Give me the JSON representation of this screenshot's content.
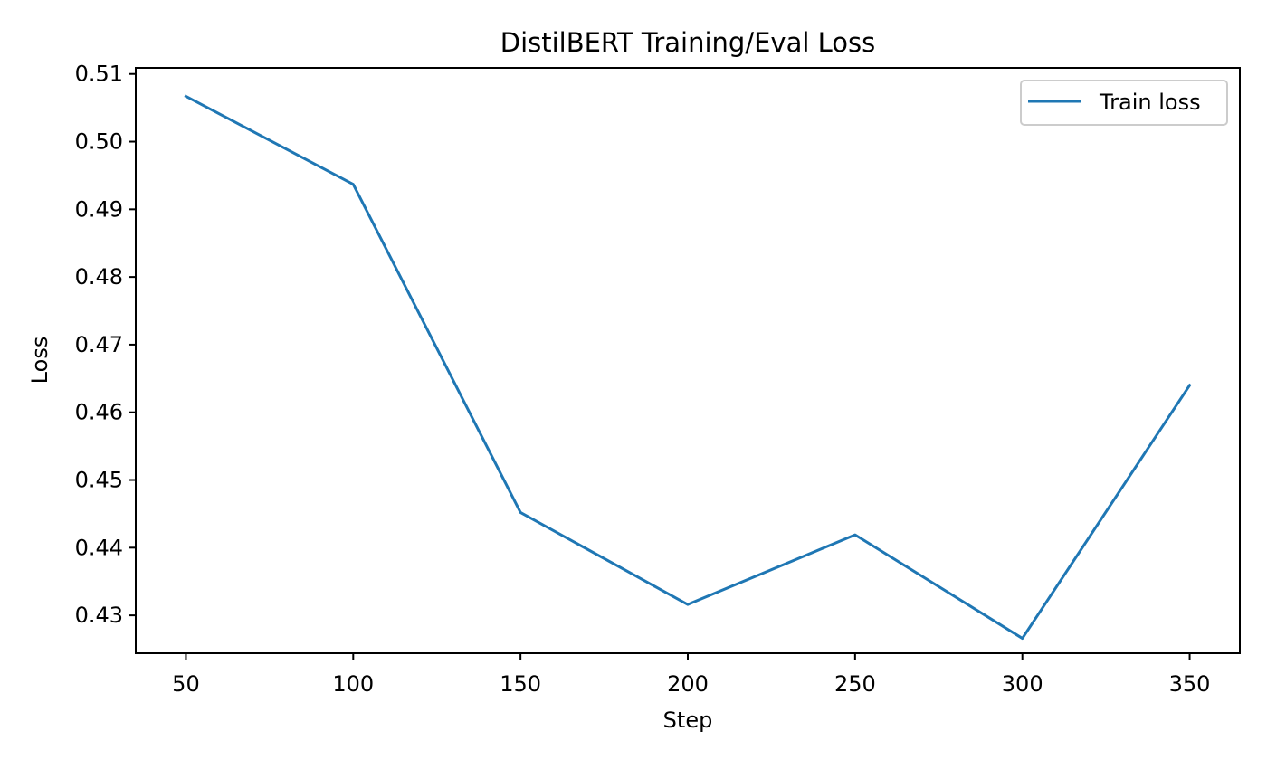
{
  "chart_data": {
    "type": "line",
    "title": "DistilBERT Training/Eval Loss",
    "xlabel": "Step",
    "ylabel": "Loss",
    "x": [
      50,
      100,
      150,
      200,
      250,
      300,
      350
    ],
    "series": [
      {
        "name": "Train loss",
        "values": [
          0.5067,
          0.4937,
          0.4452,
          0.4316,
          0.4419,
          0.4266,
          0.464
        ],
        "color": "#1f77b4"
      }
    ],
    "xlim": [
      35,
      365
    ],
    "ylim": [
      0.4244,
      0.5109
    ],
    "xticks": [
      50,
      100,
      150,
      200,
      250,
      300,
      350
    ],
    "yticks": [
      0.43,
      0.44,
      0.45,
      0.46,
      0.47,
      0.48,
      0.49,
      0.5,
      0.51
    ],
    "xtick_labels": [
      "50",
      "100",
      "150",
      "200",
      "250",
      "300",
      "350"
    ],
    "ytick_labels": [
      "0.43",
      "0.44",
      "0.45",
      "0.46",
      "0.47",
      "0.48",
      "0.49",
      "0.50",
      "0.51"
    ],
    "grid": false,
    "legend_position": "upper right"
  }
}
